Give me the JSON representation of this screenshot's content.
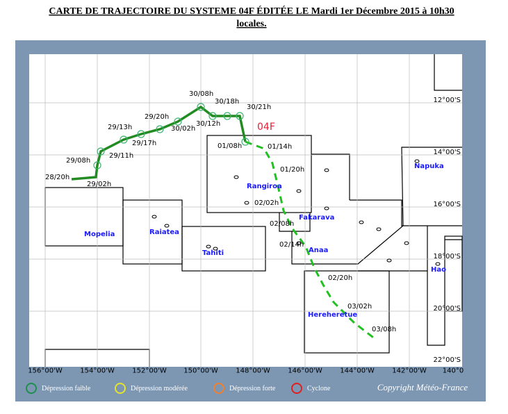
{
  "title": {
    "line1": "CARTE DE TRAJECTOIRE DU SYSTEME 04F ÉDITÉE LE Mardi 1er Décembre 2015 à 10h30",
    "line2": "locales."
  },
  "storm_name": "04F",
  "observed": [
    "28/20h",
    "29/02h",
    "29/08h",
    "29/11h",
    "29/13h",
    "29/17h",
    "29/20h",
    "30/02h",
    "30/08h",
    "30/12h",
    "30/18h",
    "30/21h",
    "01/08h"
  ],
  "forecast": [
    "01/14h",
    "01/20h",
    "02/02h",
    "02/08h",
    "02/14h",
    "02/20h",
    "03/02h",
    "03/08h"
  ],
  "places": [
    "Mopelia",
    "Raiatea",
    "Tahiti",
    "Rangiroa",
    "Fakarava",
    "Anaa",
    "Napuka",
    "Hao",
    "Hereheretue"
  ],
  "longitudes": [
    "156°00'W",
    "154°00'W",
    "152°00'W",
    "150°00'W",
    "148°00'W",
    "146°00'W",
    "144°00'W",
    "142°00'W",
    "140°0"
  ],
  "latitudes": [
    "12°00'S",
    "14°00'S",
    "16°00'S",
    "18°00'S",
    "20°00'S",
    "22°00'S"
  ],
  "legend": [
    "Dépression faible",
    "Dépression modérée",
    "Dépression forte",
    "Cyclone"
  ],
  "copyright": "Copyright Météo-France"
}
